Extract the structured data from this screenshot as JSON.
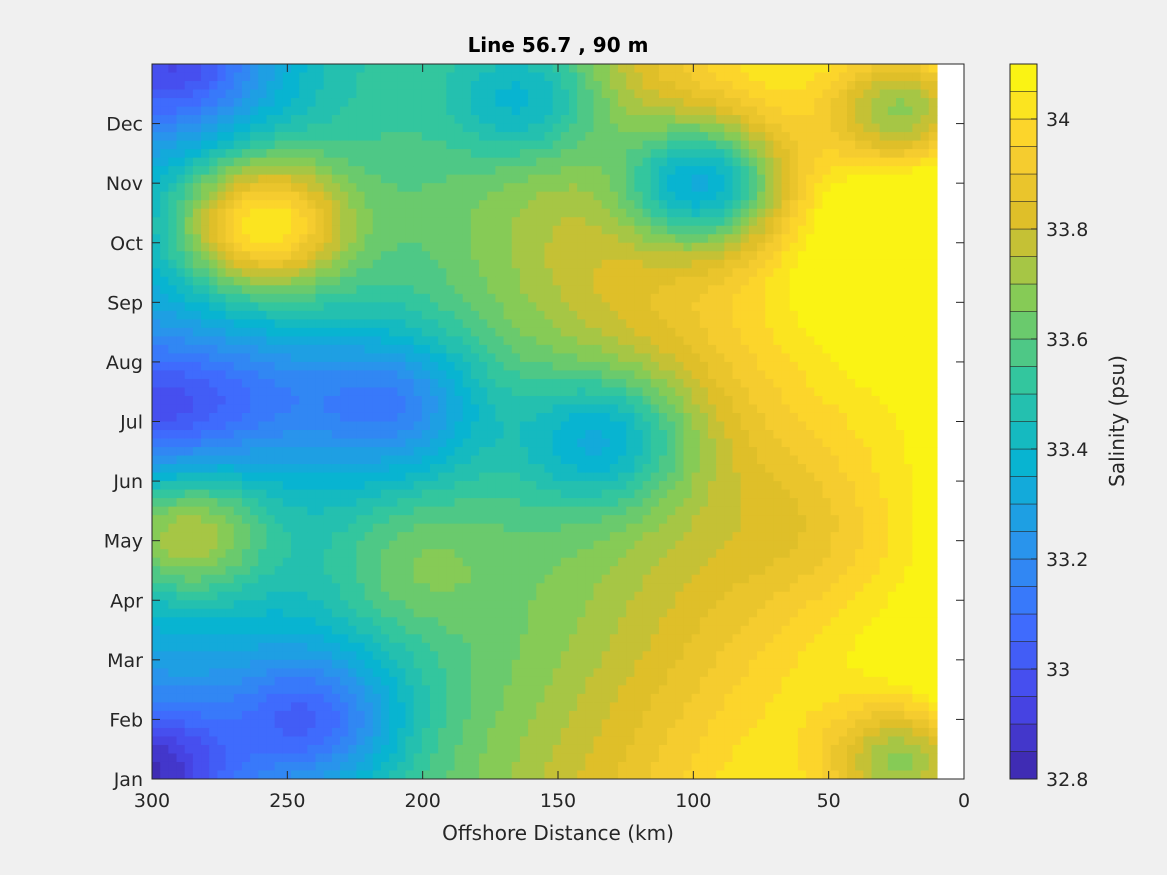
{
  "chart_data": {
    "type": "heatmap",
    "title": "Line 56.7 , 90 m",
    "xlabel": "Offshore Distance (km)",
    "ylabel": "",
    "xlim": [
      300,
      0
    ],
    "x_reversed": true,
    "x_ticks": [
      300,
      250,
      200,
      150,
      100,
      50,
      0
    ],
    "y_ticks": [
      "Jan",
      "Feb",
      "Mar",
      "Apr",
      "May",
      "Jun",
      "Jul",
      "Aug",
      "Sep",
      "Oct",
      "Nov",
      "Dec"
    ],
    "data_x_extent": [
      300,
      10
    ],
    "colorbar": {
      "label": "Salinity (psu)",
      "range": [
        32.8,
        34.1
      ],
      "ticks": [
        32.8,
        33,
        33.2,
        33.4,
        33.6,
        33.8,
        34
      ],
      "levels": 26,
      "colormap": "parula",
      "low_color": "#3e26a8",
      "high_color": "#f4e41c"
    },
    "features": [
      {
        "x": 260,
        "month": 9.3,
        "salinity": 34.05
      },
      {
        "x": 300,
        "month": 0.1,
        "salinity": 32.85
      },
      {
        "x": 290,
        "month": 12.0,
        "salinity": 32.95
      },
      {
        "x": 210,
        "month": 6.3,
        "salinity": 33.15
      },
      {
        "x": 260,
        "month": 6.4,
        "salinity": 33.2
      },
      {
        "x": 240,
        "month": 1.0,
        "salinity": 33.05
      },
      {
        "x": 300,
        "month": 6.2,
        "salinity": 33.0
      },
      {
        "x": 132,
        "month": 5.7,
        "salinity": 33.35
      },
      {
        "x": 95,
        "month": 10.0,
        "salinity": 33.35
      },
      {
        "x": 130,
        "month": 8.5,
        "salinity": 33.85
      },
      {
        "x": 288,
        "month": 4.1,
        "salinity": 33.75
      },
      {
        "x": 205,
        "month": 3.6,
        "salinity": 33.65
      },
      {
        "x": 15,
        "month": 6.3,
        "salinity": 34.1
      },
      {
        "x": 12,
        "month": 3.3,
        "salinity": 34.1
      },
      {
        "x": 60,
        "month": 4.2,
        "salinity": 33.85
      },
      {
        "x": 20,
        "month": 11.2,
        "salinity": 33.7
      },
      {
        "x": 160,
        "month": 11.4,
        "salinity": 33.4
      },
      {
        "x": 20,
        "month": 0.2,
        "salinity": 33.7
      }
    ]
  }
}
